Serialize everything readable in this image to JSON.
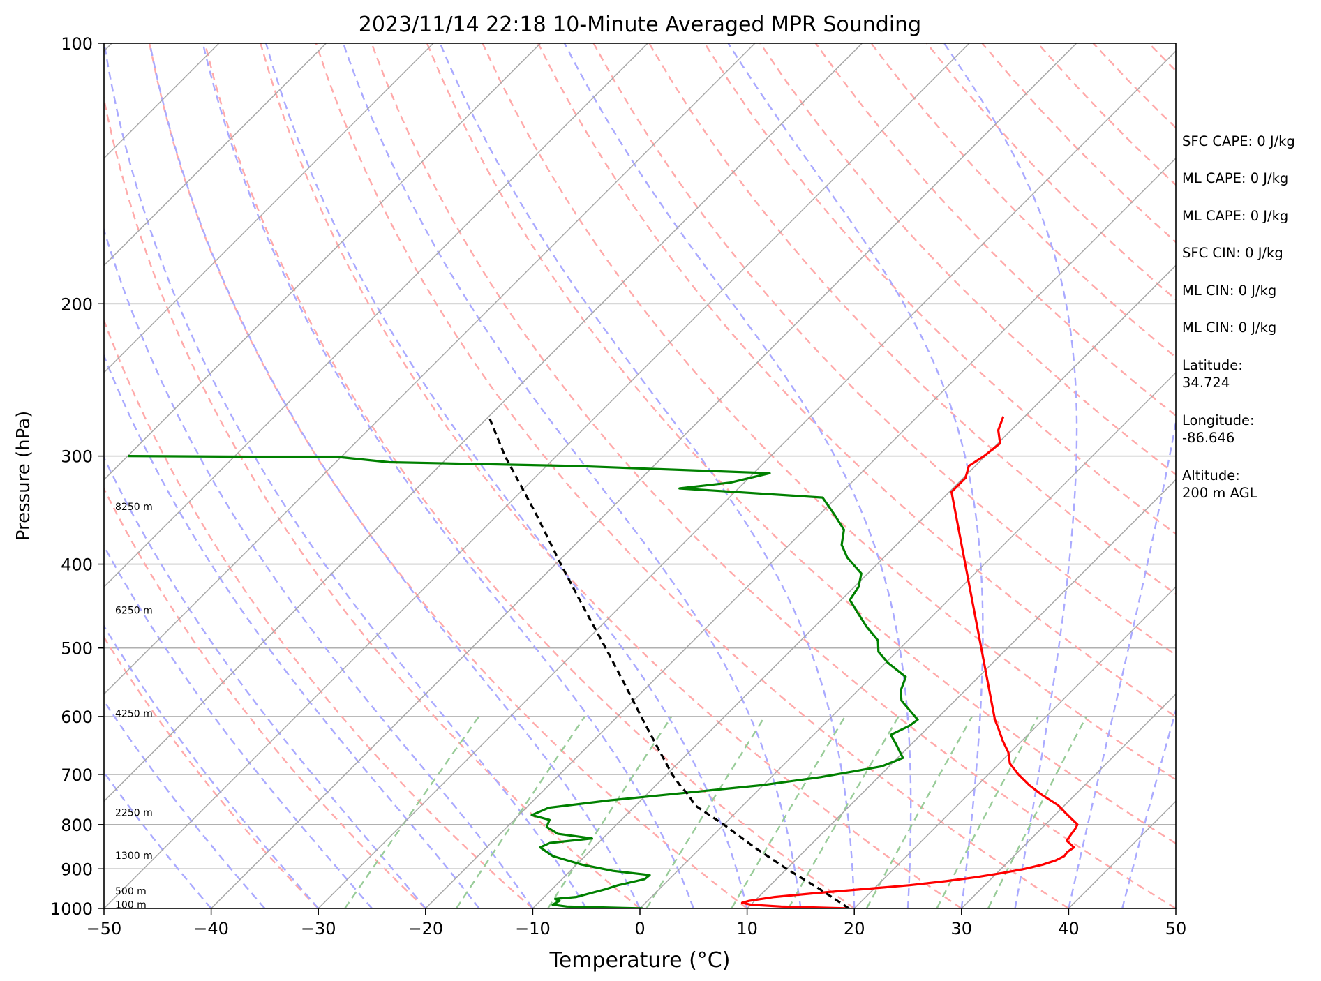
{
  "chart_data": {
    "type": "line",
    "title": "2023/11/14 22:18 10-Minute Averaged MPR Sounding",
    "xlabel": "Temperature (°C)",
    "ylabel": "Pressure (hPa)",
    "xlim": [
      -50,
      50
    ],
    "ylim": [
      1000,
      100
    ],
    "y_scale": "log",
    "x_ticks": [
      -50,
      -40,
      -30,
      -20,
      -10,
      0,
      10,
      20,
      30,
      40,
      50
    ],
    "x_tick_labels": [
      "−50",
      "−40",
      "−30",
      "−20",
      "−10",
      "0",
      "10",
      "20",
      "30",
      "40",
      "50"
    ],
    "y_ticks": [
      1000,
      900,
      800,
      700,
      600,
      500,
      400,
      300,
      200,
      100
    ],
    "y_tick_labels": [
      "1000",
      "900",
      "800",
      "700",
      "600",
      "500",
      "400",
      "300",
      "200",
      "100"
    ],
    "grid": true,
    "skew": true,
    "height_labels": [
      {
        "text": "100 m",
        "p": 990
      },
      {
        "text": "500 m",
        "p": 955
      },
      {
        "text": "1300 m",
        "p": 868
      },
      {
        "text": "2250 m",
        "p": 775
      },
      {
        "text": "4250 m",
        "p": 595
      },
      {
        "text": "6250 m",
        "p": 452
      },
      {
        "text": "8250 m",
        "p": 343
      }
    ],
    "series": [
      {
        "color": "#ff0000",
        "points": [
          {
            "p": 1000,
            "t": 19.5
          },
          {
            "p": 995,
            "t": 13
          },
          {
            "p": 990,
            "t": 10
          },
          {
            "p": 985,
            "t": 9
          },
          {
            "p": 980,
            "t": 9.5
          },
          {
            "p": 970,
            "t": 11.5
          },
          {
            "p": 960,
            "t": 15
          },
          {
            "p": 950,
            "t": 19
          },
          {
            "p": 940,
            "t": 23
          },
          {
            "p": 930,
            "t": 26
          },
          {
            "p": 920,
            "t": 28.5
          },
          {
            "p": 910,
            "t": 30.5
          },
          {
            "p": 900,
            "t": 32.2
          },
          {
            "p": 890,
            "t": 33.5
          },
          {
            "p": 880,
            "t": 34.3
          },
          {
            "p": 870,
            "t": 34.7
          },
          {
            "p": 860,
            "t": 34.6
          },
          {
            "p": 850,
            "t": 34.8
          },
          {
            "p": 835,
            "t": 33.5
          },
          {
            "p": 820,
            "t": 33.3
          },
          {
            "p": 810,
            "t": 33.2
          },
          {
            "p": 800,
            "t": 33
          },
          {
            "p": 780,
            "t": 31.2
          },
          {
            "p": 760,
            "t": 29.4
          },
          {
            "p": 740,
            "t": 27
          },
          {
            "p": 720,
            "t": 24.8
          },
          {
            "p": 700,
            "t": 22.8
          },
          {
            "p": 680,
            "t": 21
          },
          {
            "p": 660,
            "t": 19.8
          },
          {
            "p": 640,
            "t": 18.2
          },
          {
            "p": 620,
            "t": 16.7
          },
          {
            "p": 605,
            "t": 15.5
          },
          {
            "p": 330,
            "t": -9.8
          },
          {
            "p": 318,
            "t": -9.8
          },
          {
            "p": 308,
            "t": -10.6
          },
          {
            "p": 300,
            "t": -10.1
          },
          {
            "p": 290,
            "t": -9.8
          },
          {
            "p": 280,
            "t": -11.2
          },
          {
            "p": 270,
            "t": -12
          }
        ]
      },
      {
        "color": "#008000",
        "points": [
          {
            "p": 1000,
            "t": 0.3
          },
          {
            "p": 995,
            "t": -7
          },
          {
            "p": 990,
            "t": -8.5
          },
          {
            "p": 980,
            "t": -8.2
          },
          {
            "p": 975,
            "t": -8.8
          },
          {
            "p": 970,
            "t": -7
          },
          {
            "p": 960,
            "t": -6
          },
          {
            "p": 950,
            "t": -5
          },
          {
            "p": 940,
            "t": -4.2
          },
          {
            "p": 925,
            "t": -2.3
          },
          {
            "p": 915,
            "t": -2.2
          },
          {
            "p": 905,
            "t": -6
          },
          {
            "p": 890,
            "t": -9.5
          },
          {
            "p": 870,
            "t": -13
          },
          {
            "p": 850,
            "t": -15
          },
          {
            "p": 840,
            "t": -14.5
          },
          {
            "p": 830,
            "t": -11
          },
          {
            "p": 820,
            "t": -14.6
          },
          {
            "p": 805,
            "t": -16.3
          },
          {
            "p": 790,
            "t": -16.7
          },
          {
            "p": 780,
            "t": -18.8
          },
          {
            "p": 765,
            "t": -17.9
          },
          {
            "p": 750,
            "t": -12.9
          },
          {
            "p": 735,
            "t": -6.5
          },
          {
            "p": 720,
            "t": 0
          },
          {
            "p": 705,
            "t": 4.6
          },
          {
            "p": 695,
            "t": 7
          },
          {
            "p": 685,
            "t": 9.3
          },
          {
            "p": 670,
            "t": 10.5
          },
          {
            "p": 660,
            "t": 9.7
          },
          {
            "p": 645,
            "t": 8.5
          },
          {
            "p": 630,
            "t": 7.2
          },
          {
            "p": 615,
            "t": 8.1
          },
          {
            "p": 605,
            "t": 8.3
          },
          {
            "p": 595,
            "t": 7.2
          },
          {
            "p": 575,
            "t": 5
          },
          {
            "p": 560,
            "t": 4
          },
          {
            "p": 540,
            "t": 3.2
          },
          {
            "p": 520,
            "t": 0.2
          },
          {
            "p": 505,
            "t": -1.7
          },
          {
            "p": 490,
            "t": -2.8
          },
          {
            "p": 472,
            "t": -5.2
          },
          {
            "p": 455,
            "t": -7.3
          },
          {
            "p": 440,
            "t": -9.2
          },
          {
            "p": 425,
            "t": -9.6
          },
          {
            "p": 410,
            "t": -10.6
          },
          {
            "p": 393,
            "t": -13.4
          },
          {
            "p": 380,
            "t": -15.1
          },
          {
            "p": 365,
            "t": -16.3
          },
          {
            "p": 350,
            "t": -18.7
          },
          {
            "p": 335,
            "t": -21.3
          },
          {
            "p": 327,
            "t": -35.5
          },
          {
            "p": 322,
            "t": -31.3
          },
          {
            "p": 314,
            "t": -28.5
          },
          {
            "p": 308,
            "t": -47.5
          },
          {
            "p": 305,
            "t": -65
          },
          {
            "p": 301,
            "t": -70
          },
          {
            "p": 300,
            "t": -90
          }
        ]
      },
      {
        "color": "#000000",
        "dashed": true,
        "points": [
          {
            "p": 1000,
            "t": 19.5
          },
          {
            "p": 950,
            "t": 15
          },
          {
            "p": 900,
            "t": 10
          },
          {
            "p": 850,
            "t": 5
          },
          {
            "p": 800,
            "t": 0
          },
          {
            "p": 760,
            "t": -4.5
          },
          {
            "p": 740,
            "t": -6
          },
          {
            "p": 720,
            "t": -7.8
          },
          {
            "p": 700,
            "t": -9.5
          },
          {
            "p": 650,
            "t": -13.5
          },
          {
            "p": 600,
            "t": -17.8
          },
          {
            "p": 550,
            "t": -22.4
          },
          {
            "p": 500,
            "t": -27.5
          },
          {
            "p": 450,
            "t": -33.2
          },
          {
            "p": 400,
            "t": -39.5
          },
          {
            "p": 350,
            "t": -46.5
          },
          {
            "p": 300,
            "t": -54.8
          },
          {
            "p": 270,
            "t": -60
          }
        ]
      }
    ]
  },
  "info_panel": [
    {
      "text": "SFC CAPE: 0 J/kg"
    },
    {
      "text": "ML CAPE: 0 J/kg"
    },
    {
      "text": "ML CAPE: 0 J/kg"
    },
    {
      "text": "SFC CIN: 0 J/kg"
    },
    {
      "text": "ML CIN: 0 J/kg"
    },
    {
      "text": "ML CIN: 0 J/kg"
    },
    {
      "lines": [
        "Latitude:",
        "34.724"
      ]
    },
    {
      "lines": [
        "Longitude:",
        "-86.646"
      ]
    },
    {
      "lines": [
        "Altitude:",
        "200 m AGL"
      ]
    }
  ],
  "colors": {
    "grid": "#b0b0b0",
    "isotherm": "#a8a8a8",
    "dry_adiabat": "#ffaaaa",
    "moist_adiabat": "#aaaaff",
    "mixing_ratio": "#99cc99"
  }
}
